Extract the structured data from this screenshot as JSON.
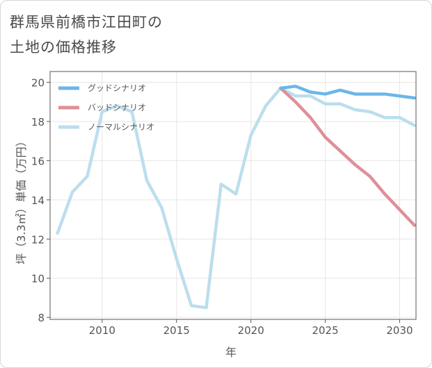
{
  "title_line1": "群馬県前橋市江田町の",
  "title_line2": "土地の価格推移",
  "chart_data": {
    "type": "line",
    "title": "群馬県前橋市江田町の土地の価格推移",
    "xlabel": "年",
    "ylabel": "坪（3.3㎡）単価（万円）",
    "xlim": [
      2006.5,
      2031.1
    ],
    "ylim": [
      7.9,
      20.55
    ],
    "xticks": [
      2010,
      2015,
      2020,
      2025,
      2030
    ],
    "yticks": [
      8,
      10,
      12,
      14,
      16,
      18,
      20
    ],
    "grid": true,
    "legend_position": "top-left",
    "series": [
      {
        "name": "グッドシナリオ",
        "color": "#6bb6ea",
        "x": [
          2022,
          2023,
          2024,
          2025,
          2026,
          2027,
          2028,
          2029,
          2030,
          2031
        ],
        "y": [
          19.7,
          19.8,
          19.5,
          19.4,
          19.6,
          19.4,
          19.4,
          19.4,
          19.3,
          19.2
        ]
      },
      {
        "name": "バッドシナリオ",
        "color": "#df8f98",
        "x": [
          2022,
          2023,
          2024,
          2025,
          2026,
          2027,
          2028,
          2029,
          2030,
          2031
        ],
        "y": [
          19.7,
          19.0,
          18.2,
          17.2,
          16.5,
          15.8,
          15.2,
          14.3,
          13.5,
          12.7
        ]
      },
      {
        "name": "ノーマルシナリオ",
        "color": "#bcdeee",
        "x": [
          2007,
          2008,
          2009,
          2010,
          2011,
          2012,
          2013,
          2014,
          2015,
          2016,
          2017,
          2018,
          2019,
          2020,
          2021,
          2022,
          2023,
          2024,
          2025,
          2026,
          2027,
          2028,
          2029,
          2030,
          2031
        ],
        "y": [
          12.3,
          14.4,
          15.2,
          18.5,
          18.8,
          18.5,
          15.0,
          13.6,
          11.0,
          8.6,
          8.5,
          14.8,
          14.3,
          17.3,
          18.8,
          19.7,
          19.3,
          19.3,
          18.9,
          18.9,
          18.6,
          18.5,
          18.2,
          18.2,
          17.8
        ]
      }
    ]
  }
}
